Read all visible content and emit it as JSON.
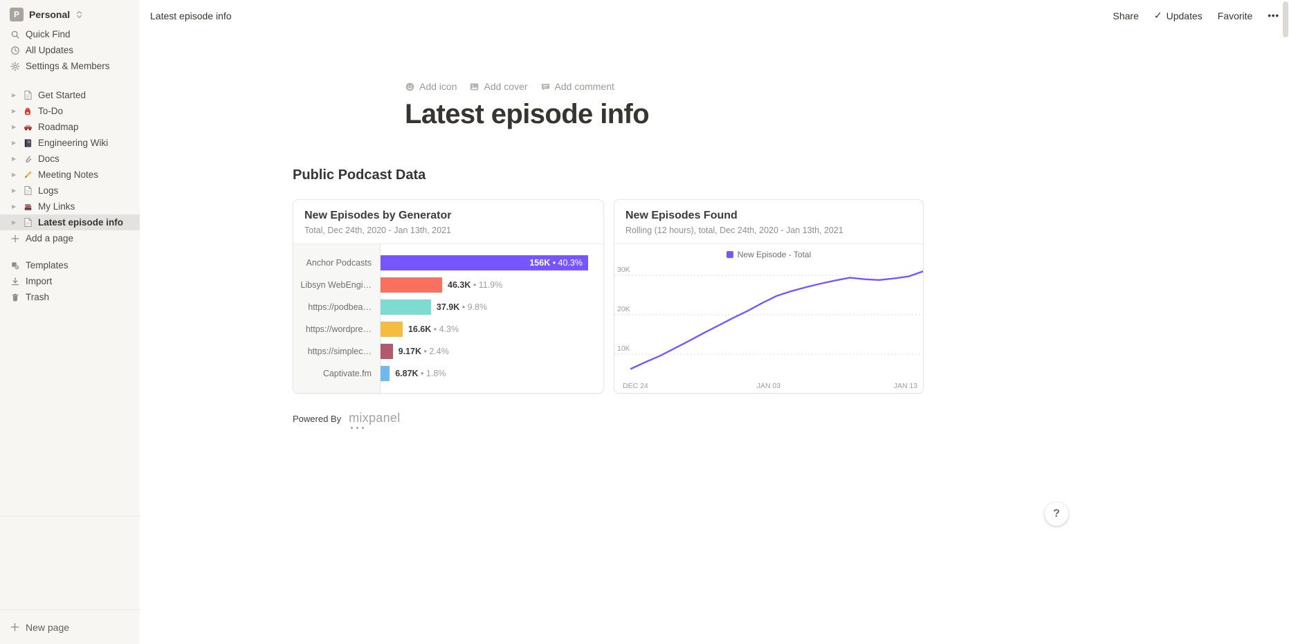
{
  "sidebar": {
    "workspace": {
      "initial": "P",
      "name": "Personal"
    },
    "top_items": [
      {
        "label": "Quick Find",
        "icon": "search-icon"
      },
      {
        "label": "All Updates",
        "icon": "clock-icon"
      },
      {
        "label": "Settings & Members",
        "icon": "gear-icon"
      }
    ],
    "pages": [
      {
        "label": "Get Started",
        "icon": "page-icon"
      },
      {
        "label": "To-Do",
        "icon": "backpack-icon"
      },
      {
        "label": "Roadmap",
        "icon": "car-icon"
      },
      {
        "label": "Engineering Wiki",
        "icon": "notebook-icon"
      },
      {
        "label": "Docs",
        "icon": "paperclip-icon"
      },
      {
        "label": "Meeting Notes",
        "icon": "pencil-icon"
      },
      {
        "label": "Logs",
        "icon": "page-icon"
      },
      {
        "label": "My Links",
        "icon": "books-icon"
      },
      {
        "label": "Latest episode info",
        "icon": "page-icon",
        "selected": true
      }
    ],
    "add_page_label": "Add a page",
    "bottom_items": [
      {
        "label": "Templates",
        "icon": "templates-icon"
      },
      {
        "label": "Import",
        "icon": "import-icon"
      },
      {
        "label": "Trash",
        "icon": "trash-icon"
      }
    ],
    "new_page_label": "New page"
  },
  "topbar": {
    "breadcrumb": "Latest episode info",
    "share_label": "Share",
    "updates_label": "Updates",
    "updates_check": "✓",
    "favorite_label": "Favorite",
    "more_label": "•••"
  },
  "page": {
    "add_icon_label": "Add icon",
    "add_cover_label": "Add cover",
    "add_comment_label": "Add comment",
    "title": "Latest episode info",
    "section_heading": "Public Podcast Data",
    "powered_by_label": "Powered By",
    "mixpanel_wordmark": "mixpanel",
    "help_label": "?"
  },
  "chart_data": [
    {
      "type": "bar",
      "orientation": "horizontal",
      "title": "New Episodes by Generator",
      "subtitle": "Total, Dec 24th, 2020 - Jan 13th, 2021",
      "categories": [
        "Anchor Podcasts",
        "Libsyn WebEngi…",
        "https://podbea…",
        "https://wordpre…",
        "https://simplec…",
        "Captivate.fm"
      ],
      "values": [
        156000,
        46300,
        37900,
        16600,
        9170,
        6870
      ],
      "value_labels": [
        "156K",
        "46.3K",
        "37.9K",
        "16.6K",
        "9.17K",
        "6.87K"
      ],
      "percent_labels": [
        "40.3%",
        "11.9%",
        "9.8%",
        "4.3%",
        "2.4%",
        "1.8%"
      ],
      "bar_colors": [
        "#7856FF",
        "#F8705E",
        "#7CDCD1",
        "#F5BC42",
        "#B2596E",
        "#6FB9F2"
      ],
      "separator": "•"
    },
    {
      "type": "line",
      "title": "New Episodes Found",
      "subtitle": "Rolling (12 hours), total, Dec 24th, 2020 - Jan 13th, 2021",
      "legend": [
        {
          "label": "New Episode - Total",
          "color": "#7856FF"
        }
      ],
      "line_color": "#7856FF",
      "grid": "horizontal-dashed",
      "ylim": [
        0,
        35000
      ],
      "y_ticks": [
        "10K",
        "20K",
        "30K"
      ],
      "x_ticks": [
        "DEC 24",
        "JAN 03",
        "JAN 13"
      ],
      "x": [
        "Dec 24",
        "Dec 25",
        "Dec 26",
        "Dec 27",
        "Dec 28",
        "Dec 29",
        "Dec 30",
        "Dec 31",
        "Jan 01",
        "Jan 02",
        "Jan 03",
        "Jan 04",
        "Jan 05",
        "Jan 06",
        "Jan 07",
        "Jan 08",
        "Jan 09",
        "Jan 10",
        "Jan 11",
        "Jan 12",
        "Jan 13"
      ],
      "values": [
        6300,
        8000,
        9600,
        11500,
        13400,
        15400,
        17300,
        19200,
        21000,
        23000,
        24800,
        26000,
        27000,
        27900,
        28700,
        29400,
        29000,
        28800,
        29200,
        29700,
        31000
      ]
    }
  ]
}
